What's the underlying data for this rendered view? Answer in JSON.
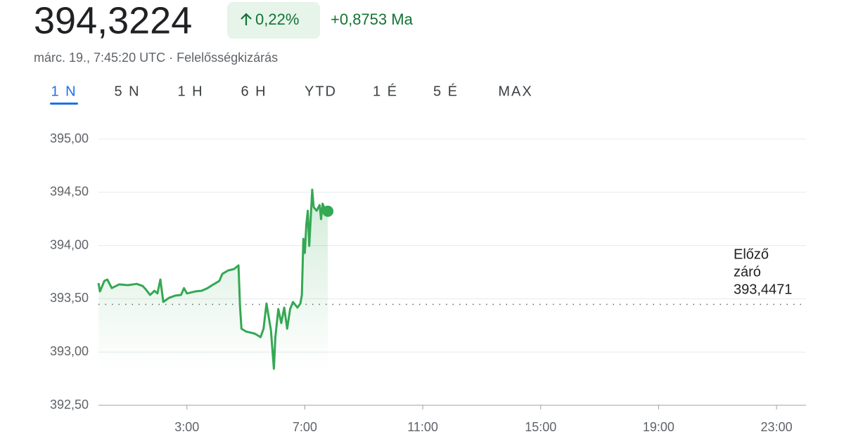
{
  "header": {
    "price": "394,3224",
    "change_percent": "0,22%",
    "change_absolute": "+0,8753 Ma",
    "timestamp": "márc. 19., 7:45:20 UTC · Felelősségkizárás"
  },
  "tabs": {
    "items": [
      "1 N",
      "5 N",
      "1 H",
      "6 H",
      "YTD",
      "1 É",
      "5 É",
      "MAX"
    ],
    "selected": "1 N"
  },
  "chart_data": {
    "type": "line",
    "x": [
      0,
      0.05,
      0.2,
      0.3,
      0.45,
      0.7,
      1.0,
      1.3,
      1.5,
      1.6,
      1.75,
      1.9,
      2.0,
      2.1,
      2.2,
      2.4,
      2.6,
      2.8,
      2.9,
      3.0,
      3.3,
      3.5,
      3.7,
      3.9,
      4.1,
      4.2,
      4.4,
      4.6,
      4.75,
      4.8,
      4.85,
      5.0,
      5.3,
      5.5,
      5.6,
      5.7,
      5.85,
      5.95,
      6.0,
      6.1,
      6.2,
      6.3,
      6.4,
      6.5,
      6.6,
      6.75,
      6.85,
      6.9,
      6.95,
      7.0,
      7.05,
      7.1,
      7.15,
      7.25,
      7.3,
      7.4,
      7.5,
      7.55,
      7.6,
      7.7,
      7.78
    ],
    "series": [
      {
        "color": "#34a853",
        "values": [
          393.648,
          393.569,
          393.668,
          393.681,
          393.6,
          393.635,
          393.628,
          393.64,
          393.62,
          393.59,
          393.536,
          393.575,
          393.55,
          393.681,
          393.47,
          393.51,
          393.53,
          393.536,
          393.6,
          393.55,
          393.57,
          393.575,
          393.6,
          393.635,
          393.668,
          393.734,
          393.766,
          393.78,
          393.813,
          393.437,
          393.219,
          393.193,
          393.173,
          393.14,
          393.219,
          393.456,
          393.206,
          392.843,
          393.14,
          393.404,
          393.272,
          393.417,
          393.219,
          393.404,
          393.47,
          393.417,
          393.456,
          393.536,
          394.063,
          393.931,
          394.195,
          394.327,
          393.997,
          394.525,
          394.36,
          394.327,
          394.38,
          394.248,
          394.393,
          394.327,
          394.3224
        ]
      }
    ],
    "xlim": [
      0,
      24
    ],
    "xticks": [
      {
        "value": 3,
        "label": "3:00"
      },
      {
        "value": 7,
        "label": "7:00"
      },
      {
        "value": 11,
        "label": "11:00"
      },
      {
        "value": 15,
        "label": "15:00"
      },
      {
        "value": 19,
        "label": "19:00"
      },
      {
        "value": 23,
        "label": "23:00"
      }
    ],
    "ylim": [
      392.5,
      395
    ],
    "yticks": [
      {
        "value": 392.5,
        "label": "392,50"
      },
      {
        "value": 393,
        "label": "393,00"
      },
      {
        "value": 393.5,
        "label": "393,50"
      },
      {
        "value": 394,
        "label": "394,00"
      },
      {
        "value": 394.5,
        "label": "394,50"
      },
      {
        "value": 395,
        "label": "395,00"
      }
    ],
    "grid": true,
    "reference_line": {
      "label_lines": [
        "Előző",
        "záró"
      ],
      "value": 393.4471,
      "value_label": "393,4471"
    }
  }
}
